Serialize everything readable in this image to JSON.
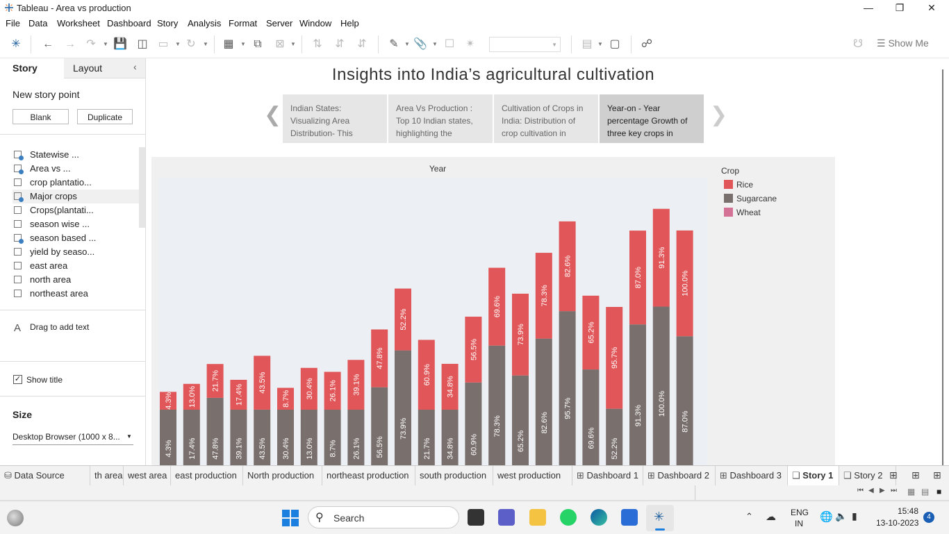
{
  "window": {
    "title": "Tableau - Area vs production"
  },
  "menu": [
    "File",
    "Data",
    "Worksheet",
    "Dashboard",
    "Story",
    "Analysis",
    "Format",
    "Server",
    "Window",
    "Help"
  ],
  "toolbar": {
    "show_me": "Show Me"
  },
  "left_panel": {
    "tab_story": "Story",
    "tab_layout": "Layout",
    "new_story_point": "New story point",
    "blank": "Blank",
    "duplicate": "Duplicate",
    "sheets": [
      {
        "label": "Statewise ...",
        "checked": true
      },
      {
        "label": "Area vs ...",
        "checked": true
      },
      {
        "label": "crop plantatio...",
        "checked": false
      },
      {
        "label": "Major crops",
        "checked": true
      },
      {
        "label": "Crops(plantati...",
        "checked": false
      },
      {
        "label": "season wise ...",
        "checked": false
      },
      {
        "label": "season based ...",
        "checked": true
      },
      {
        "label": "yield by seaso...",
        "checked": false
      },
      {
        "label": "east area",
        "checked": false
      },
      {
        "label": "north area",
        "checked": false
      },
      {
        "label": "northeast area",
        "checked": false
      }
    ],
    "drag_text": "Drag to add text",
    "show_title": "Show title",
    "size_label": "Size",
    "size_value": "Desktop Browser (1000 x 8..."
  },
  "story": {
    "title": "Insights into India’s agricultural cultivation",
    "points": [
      "Indian States: Visualizing Area Distribution- This",
      "Area Vs Production : Top 10 Indian states, highlighting the",
      "Cultivation of Crops in India: Distribution of crop cultivation in",
      "Year-on - Year percentage Growth of three key crops in"
    ],
    "active_point": 3
  },
  "chart_data": {
    "type": "bar",
    "stacked": true,
    "title": "Year",
    "legend_title": "Crop",
    "legend_position": "right",
    "legend": [
      {
        "name": "Rice",
        "color": "#e15759"
      },
      {
        "name": "Sugarcane",
        "color": "#79706e"
      },
      {
        "name": "Wheat",
        "color": "#d37295"
      }
    ],
    "series": [
      {
        "name": "Sugarcane",
        "color": "#79706e",
        "labels": [
          "4.3%",
          "17.4%",
          "47.8%",
          "39.1%",
          "43.5%",
          "30.4%",
          "13.0%",
          "8.7%",
          "26.1%",
          "56.5%",
          "73.9%",
          "21.7%",
          "34.8%",
          "60.9%",
          "78.3%",
          "65.2%",
          "82.6%",
          "95.7%",
          "69.6%",
          "52.2%",
          "91.3%",
          "100.0%",
          "87.0%"
        ],
        "values": [
          4.3,
          17.4,
          47.8,
          39.1,
          43.5,
          30.4,
          13.0,
          8.7,
          26.1,
          56.5,
          73.9,
          21.7,
          34.8,
          60.9,
          78.3,
          65.2,
          82.6,
          95.7,
          69.6,
          52.2,
          91.3,
          100.0,
          87.0
        ]
      },
      {
        "name": "Rice",
        "color": "#e15759",
        "labels": [
          "4.3%",
          "13.0%",
          "21.7%",
          "17.4%",
          "43.5%",
          "8.7%",
          "30.4%",
          "26.1%",
          "39.1%",
          "47.8%",
          "52.2%",
          "60.9%",
          "34.8%",
          "56.5%",
          "69.6%",
          "73.9%",
          "78.3%",
          "82.6%",
          "65.2%",
          "95.7%",
          "87.0%",
          "91.3%",
          "100.0%"
        ],
        "values": [
          4.3,
          13.0,
          21.7,
          17.4,
          43.5,
          8.7,
          30.4,
          26.1,
          39.1,
          47.8,
          52.2,
          60.9,
          34.8,
          56.5,
          69.6,
          73.9,
          78.3,
          82.6,
          65.2,
          95.7,
          87.0,
          91.3,
          100.0
        ]
      }
    ]
  },
  "sheet_tabs": [
    "Data Source",
    "th area",
    "west area",
    "east production",
    "North production",
    "northeast production",
    "south production",
    "west production",
    "Dashboard 1",
    "Dashboard 2",
    "Dashboard 3",
    "Story 1",
    "Story 2"
  ],
  "active_sheet_tab": "Story 1",
  "taskbar": {
    "search": "Search",
    "lang_top": "ENG",
    "lang_bottom": "IN",
    "time": "15:48",
    "date": "13-10-2023",
    "notifications": "4"
  }
}
